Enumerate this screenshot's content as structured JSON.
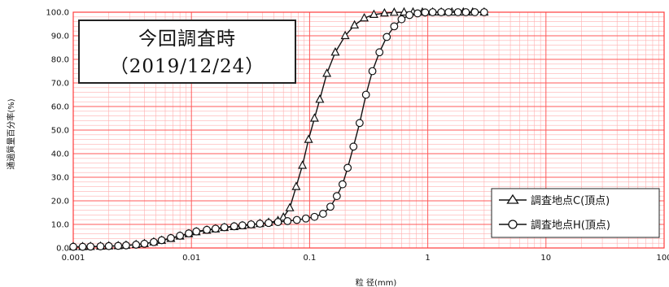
{
  "chart_data": {
    "type": "line",
    "x_scale": "log",
    "xlim": [
      0.001,
      100
    ],
    "ylim": [
      0,
      100
    ],
    "grid": true,
    "legend_position": "bottom-right",
    "xlabel": "粒 径(mm)",
    "ylabel": "通過質量百分率(%)",
    "x_tick_labels": [
      "0.001",
      "0.01",
      "0.1",
      "1",
      "10",
      "100"
    ],
    "y_tick_labels": [
      "0.0",
      "10.0",
      "20.0",
      "30.0",
      "40.0",
      "50.0",
      "60.0",
      "70.0",
      "80.0",
      "90.0",
      "100.0"
    ],
    "annotation": {
      "line1": "今回調査時",
      "line2": "（2019/12/24）"
    },
    "colors": {
      "grid_major": "#ff5a5a",
      "grid_minor": "#ffb0b0",
      "plot_border": "#ff3c3c",
      "series_line": "#111111"
    },
    "series": [
      {
        "name": "調査地点C(頂点)",
        "marker": "triangle",
        "points": [
          [
            0.001,
            0.5
          ],
          [
            0.0012,
            0.5
          ],
          [
            0.0014,
            0.6
          ],
          [
            0.0017,
            0.7
          ],
          [
            0.002,
            0.8
          ],
          [
            0.0024,
            0.9
          ],
          [
            0.0028,
            1.1
          ],
          [
            0.0034,
            1.4
          ],
          [
            0.004,
            1.8
          ],
          [
            0.0048,
            2.5
          ],
          [
            0.0056,
            3.2
          ],
          [
            0.0067,
            4.0
          ],
          [
            0.008,
            5.0
          ],
          [
            0.0095,
            6.0
          ],
          [
            0.011,
            6.8
          ],
          [
            0.0135,
            7.5
          ],
          [
            0.016,
            8.0
          ],
          [
            0.019,
            8.6
          ],
          [
            0.023,
            9.0
          ],
          [
            0.027,
            9.4
          ],
          [
            0.032,
            9.8
          ],
          [
            0.038,
            10.3
          ],
          [
            0.045,
            10.8
          ],
          [
            0.054,
            11.6
          ],
          [
            0.06,
            13.0
          ],
          [
            0.068,
            17.0
          ],
          [
            0.077,
            26.0
          ],
          [
            0.087,
            35.0
          ],
          [
            0.098,
            46.0
          ],
          [
            0.11,
            55.0
          ],
          [
            0.122,
            63.0
          ],
          [
            0.14,
            74.0
          ],
          [
            0.165,
            83.0
          ],
          [
            0.2,
            90.0
          ],
          [
            0.24,
            94.5
          ],
          [
            0.29,
            97.5
          ],
          [
            0.35,
            99.0
          ],
          [
            0.43,
            99.6
          ],
          [
            0.52,
            99.9
          ],
          [
            0.63,
            100.0
          ],
          [
            0.75,
            100.0
          ],
          [
            0.9,
            100.0
          ],
          [
            1.1,
            100.0
          ],
          [
            1.3,
            100.0
          ],
          [
            1.6,
            100.0
          ],
          [
            2.0,
            100.0
          ],
          [
            2.4,
            100.0
          ],
          [
            3.0,
            100.0
          ]
        ]
      },
      {
        "name": "調査地点H(頂点)",
        "marker": "circle",
        "points": [
          [
            0.001,
            0.5
          ],
          [
            0.0012,
            0.5
          ],
          [
            0.0014,
            0.6
          ],
          [
            0.0017,
            0.7
          ],
          [
            0.002,
            0.8
          ],
          [
            0.0024,
            0.9
          ],
          [
            0.0028,
            1.1
          ],
          [
            0.0034,
            1.4
          ],
          [
            0.004,
            1.8
          ],
          [
            0.0048,
            2.5
          ],
          [
            0.0056,
            3.3
          ],
          [
            0.0067,
            4.2
          ],
          [
            0.008,
            5.2
          ],
          [
            0.0095,
            6.2
          ],
          [
            0.011,
            7.0
          ],
          [
            0.0135,
            7.7
          ],
          [
            0.016,
            8.2
          ],
          [
            0.019,
            8.8
          ],
          [
            0.023,
            9.2
          ],
          [
            0.027,
            9.6
          ],
          [
            0.032,
            10.0
          ],
          [
            0.038,
            10.3
          ],
          [
            0.045,
            10.6
          ],
          [
            0.054,
            11.0
          ],
          [
            0.065,
            11.4
          ],
          [
            0.078,
            11.9
          ],
          [
            0.093,
            12.5
          ],
          [
            0.11,
            13.2
          ],
          [
            0.13,
            14.5
          ],
          [
            0.15,
            17.5
          ],
          [
            0.17,
            22.0
          ],
          [
            0.19,
            27.0
          ],
          [
            0.21,
            34.0
          ],
          [
            0.235,
            43.0
          ],
          [
            0.265,
            53.0
          ],
          [
            0.3,
            65.0
          ],
          [
            0.34,
            75.0
          ],
          [
            0.39,
            83.0
          ],
          [
            0.45,
            89.5
          ],
          [
            0.52,
            94.0
          ],
          [
            0.6,
            97.0
          ],
          [
            0.7,
            98.8
          ],
          [
            0.82,
            99.5
          ],
          [
            0.95,
            99.9
          ],
          [
            1.1,
            100.0
          ],
          [
            1.3,
            100.0
          ],
          [
            1.5,
            100.0
          ],
          [
            1.8,
            100.0
          ],
          [
            2.1,
            100.0
          ],
          [
            2.5,
            100.0
          ],
          [
            3.0,
            100.0
          ]
        ]
      }
    ]
  }
}
